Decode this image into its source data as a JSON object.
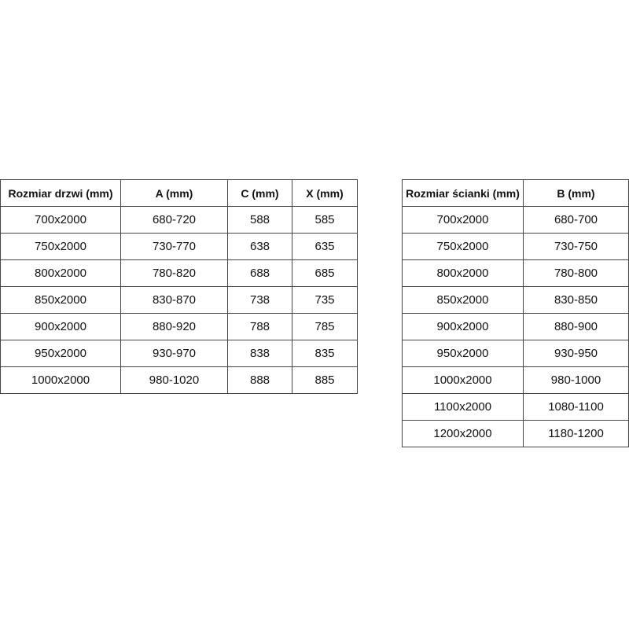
{
  "doors_table": {
    "headers": [
      "Rozmiar drzwi (mm)",
      "A (mm)",
      "C (mm)",
      "X (mm)"
    ],
    "rows": [
      [
        "700x2000",
        "680-720",
        "588",
        "585"
      ],
      [
        "750x2000",
        "730-770",
        "638",
        "635"
      ],
      [
        "800x2000",
        "780-820",
        "688",
        "685"
      ],
      [
        "850x2000",
        "830-870",
        "738",
        "735"
      ],
      [
        "900x2000",
        "880-920",
        "788",
        "785"
      ],
      [
        "950x2000",
        "930-970",
        "838",
        "835"
      ],
      [
        "1000x2000",
        "980-1020",
        "888",
        "885"
      ]
    ]
  },
  "wall_table": {
    "headers": [
      "Rozmiar ścianki (mm)",
      "B (mm)"
    ],
    "rows": [
      [
        "700x2000",
        "680-700"
      ],
      [
        "750x2000",
        "730-750"
      ],
      [
        "800x2000",
        "780-800"
      ],
      [
        "850x2000",
        "830-850"
      ],
      [
        "900x2000",
        "880-900"
      ],
      [
        "950x2000",
        "930-950"
      ],
      [
        "1000x2000",
        "980-1000"
      ],
      [
        "1100x2000",
        "1080-1100"
      ],
      [
        "1200x2000",
        "1180-1200"
      ]
    ]
  }
}
